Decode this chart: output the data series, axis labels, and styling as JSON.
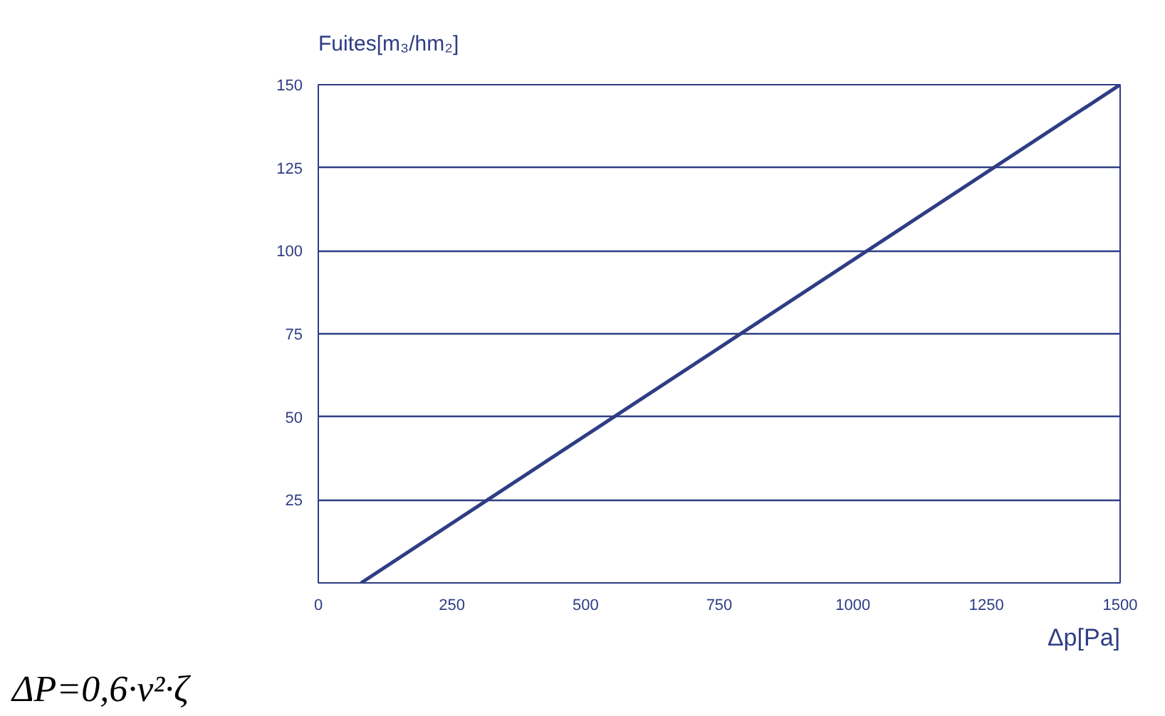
{
  "chart_data": {
    "type": "line",
    "ylabel": "Fuites[m₃/hm₂]",
    "xlabel": "Δp[Pa]",
    "annotations": [
      "ΔP=0,6·v²·ζ"
    ],
    "series": [
      {
        "color": "#2e3d84",
        "x": [
          80,
          1500
        ],
        "values": [
          0,
          150
        ]
      }
    ],
    "xlim": [
      0,
      1500
    ],
    "xticks": [
      0,
      250,
      500,
      750,
      1000,
      1250,
      1500
    ],
    "ylim": [
      0,
      150
    ],
    "yticks": [
      {
        "value": 0,
        "label": null
      },
      25,
      50,
      75,
      100,
      125,
      150
    ],
    "grid": "y",
    "marker": "none",
    "line_style": "solid"
  }
}
